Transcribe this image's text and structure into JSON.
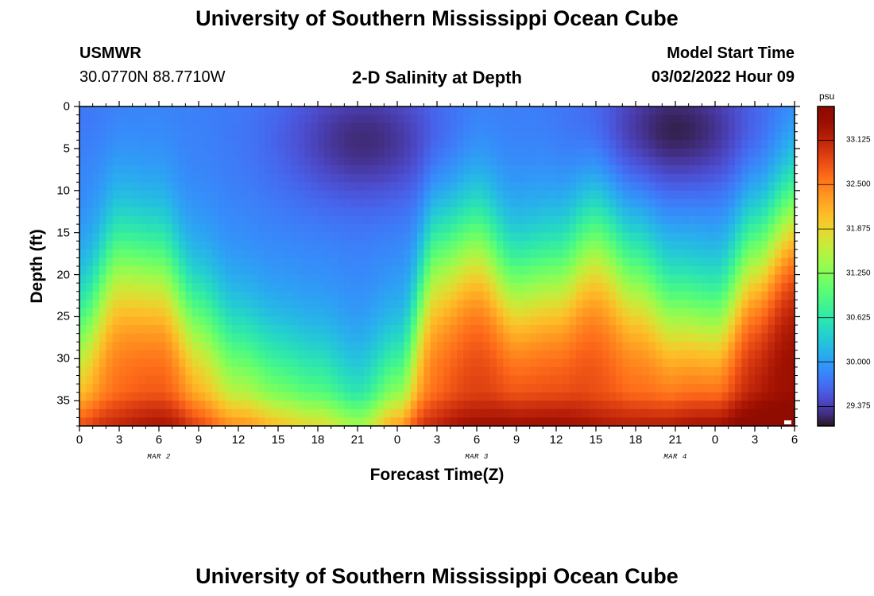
{
  "header": {
    "title": "University of Southern Mississippi Ocean Cube",
    "station": "USMWR",
    "coords": "30.0770N  88.7710W",
    "chart_title": "2-D Salinity at Depth",
    "start_label": "Model Start Time",
    "start_value": "03/02/2022 Hour 09"
  },
  "footer": {
    "title": "University of Southern Mississippi Ocean Cube"
  },
  "chart_data": {
    "type": "heatmap",
    "title": "2-D Salinity at Depth",
    "xlabel": "Forecast Time(Z)",
    "ylabel": "Depth (ft)",
    "x_tick_labels": [
      "0",
      "3",
      "6",
      "9",
      "12",
      "15",
      "18",
      "21",
      "0",
      "3",
      "6",
      "9",
      "12",
      "15",
      "18",
      "21",
      "0",
      "3",
      "6"
    ],
    "x_date_labels": [
      {
        "label": "MAR 2",
        "at_tick": 4
      },
      {
        "label": "MAR 3",
        "at_tick": 12
      },
      {
        "label": "MAR 4",
        "at_tick": 17
      }
    ],
    "y_ticks": [
      0,
      5,
      10,
      15,
      20,
      25,
      30,
      35
    ],
    "ylim": [
      0,
      38
    ],
    "forecast_hours": [
      0,
      54
    ],
    "colorbar": {
      "unit": "psu",
      "range": [
        29.1,
        33.6
      ],
      "ticks": [
        "33.125",
        "32.500",
        "31.875",
        "31.250",
        "30.625",
        "30.000",
        "29.375"
      ],
      "colormap": "turbo"
    },
    "interface_depth_ft": [
      {
        "hour": 0,
        "depth": 27
      },
      {
        "hour": 3,
        "depth": 19
      },
      {
        "hour": 6,
        "depth": 20
      },
      {
        "hour": 9,
        "depth": 26
      },
      {
        "hour": 12,
        "depth": 30
      },
      {
        "hour": 15,
        "depth": 32
      },
      {
        "hour": 18,
        "depth": 33
      },
      {
        "hour": 21,
        "depth": 35
      },
      {
        "hour": 24,
        "depth": 33
      },
      {
        "hour": 27,
        "depth": 19
      },
      {
        "hour": 30,
        "depth": 17
      },
      {
        "hour": 33,
        "depth": 22
      },
      {
        "hour": 36,
        "depth": 21
      },
      {
        "hour": 39,
        "depth": 17
      },
      {
        "hour": 42,
        "depth": 21
      },
      {
        "hour": 45,
        "depth": 25
      },
      {
        "hour": 48,
        "depth": 26
      },
      {
        "hour": 51,
        "depth": 19
      },
      {
        "hour": 54,
        "depth": 14
      }
    ],
    "surface_fresh_cores": [
      {
        "hour": 21.5,
        "depth": 4,
        "value": 29.3
      },
      {
        "hour": 45,
        "depth": 3,
        "value": 29.2
      },
      {
        "hour": 0,
        "depth": 1,
        "value": 29.8
      }
    ],
    "bottom_salinity_psu": [
      {
        "hour": 0,
        "value": 32.6
      },
      {
        "hour": 6,
        "value": 32.9
      },
      {
        "hour": 12,
        "value": 32.3
      },
      {
        "hour": 18,
        "value": 31.9
      },
      {
        "hour": 21,
        "value": 31.6
      },
      {
        "hour": 24,
        "value": 32.5
      },
      {
        "hour": 30,
        "value": 33.0
      },
      {
        "hour": 36,
        "value": 33.0
      },
      {
        "hour": 42,
        "value": 32.8
      },
      {
        "hour": 48,
        "value": 33.1
      },
      {
        "hour": 54,
        "value": 33.5
      }
    ]
  }
}
